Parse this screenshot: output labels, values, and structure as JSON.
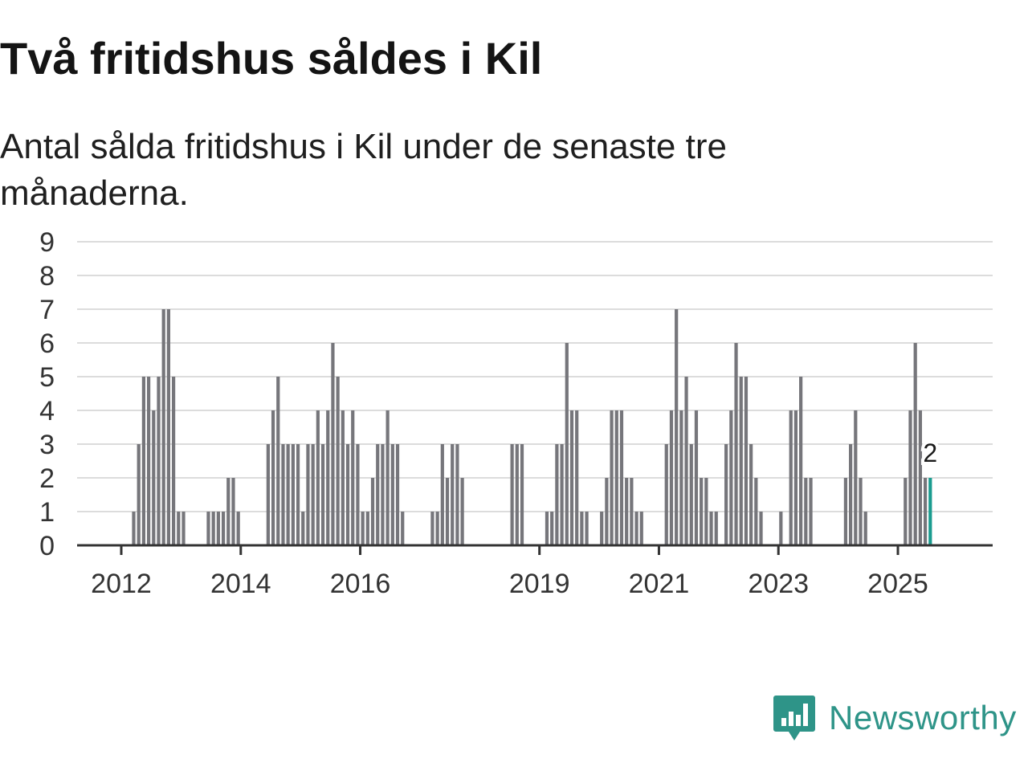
{
  "title": "Två fritidshus såldes i Kil",
  "subtitle": "Antal sålda fritidshus i Kil under de senaste tre månaderna.",
  "brand": {
    "name": "Newsworthy",
    "icon": "bar-chart-speech-bubble-icon",
    "color": "#2e9488"
  },
  "colors": {
    "bar": "#76767b",
    "highlight": "#1a9c8f"
  },
  "chart_data": {
    "type": "bar",
    "start": "2011-01",
    "frequency": "monthly",
    "ylim": [
      0,
      9
    ],
    "yticks": [
      0,
      1,
      2,
      3,
      4,
      5,
      6,
      7,
      8,
      9
    ],
    "xticks": [
      "2012",
      "2014",
      "2016",
      "2019",
      "2021",
      "2023",
      "2025"
    ],
    "grid": true,
    "values": [
      0,
      0,
      0,
      0,
      0,
      0,
      0,
      0,
      0,
      0,
      0,
      0,
      0,
      0,
      1,
      3,
      5,
      5,
      4,
      5,
      7,
      7,
      5,
      1,
      1,
      0,
      0,
      0,
      0,
      1,
      1,
      1,
      1,
      2,
      2,
      1,
      0,
      0,
      0,
      0,
      0,
      3,
      4,
      5,
      3,
      3,
      3,
      3,
      1,
      3,
      3,
      4,
      3,
      4,
      6,
      5,
      4,
      3,
      4,
      3,
      1,
      1,
      2,
      3,
      3,
      4,
      3,
      3,
      1,
      0,
      0,
      0,
      0,
      0,
      1,
      1,
      3,
      2,
      3,
      3,
      2,
      0,
      0,
      0,
      0,
      0,
      0,
      0,
      0,
      0,
      3,
      3,
      3,
      0,
      0,
      0,
      0,
      1,
      1,
      3,
      3,
      6,
      4,
      4,
      1,
      1,
      0,
      0,
      1,
      2,
      4,
      4,
      4,
      2,
      2,
      1,
      1,
      0,
      0,
      0,
      0,
      3,
      4,
      7,
      4,
      5,
      3,
      4,
      2,
      2,
      1,
      1,
      0,
      3,
      4,
      6,
      5,
      5,
      3,
      2,
      1,
      0,
      0,
      0,
      1,
      0,
      4,
      4,
      5,
      2,
      2,
      0,
      0,
      0,
      0,
      0,
      0,
      2,
      3,
      4,
      2,
      1,
      0,
      0,
      0,
      0,
      0,
      0,
      0,
      2,
      4,
      6,
      4,
      2,
      2
    ],
    "last_value_label": "2"
  }
}
